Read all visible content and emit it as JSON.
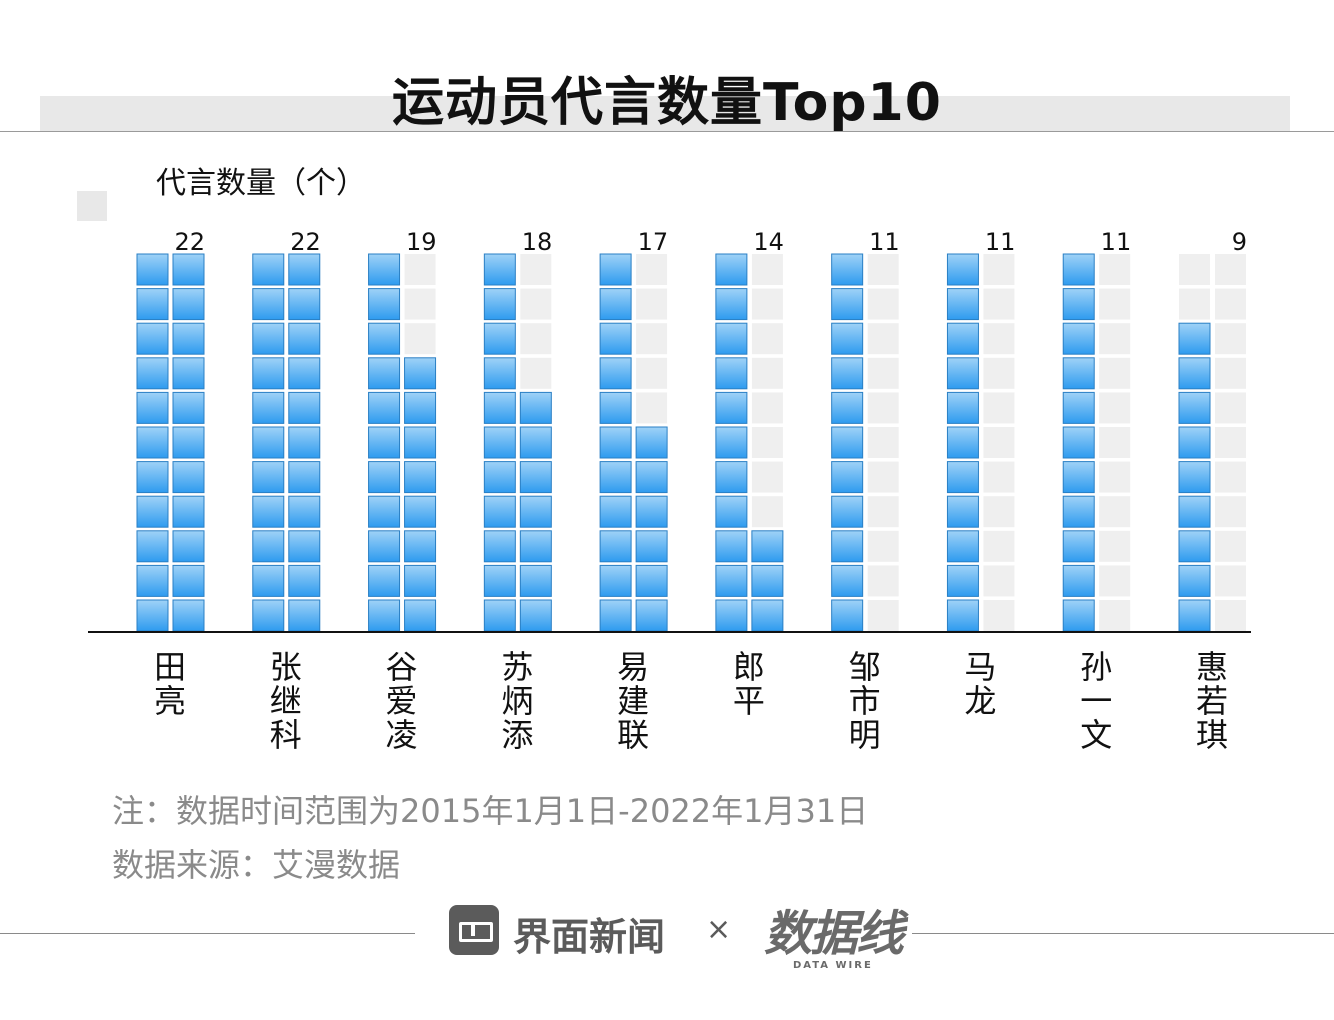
{
  "title": "运动员代言数量Top10",
  "ylabel": "代言数量（个）",
  "notes": {
    "range": "注：数据时间范围为2015年1月1日-2022年1月31日",
    "source": "数据来源：艾漫数据"
  },
  "footer": {
    "brand": "界面新闻",
    "times": "×",
    "logo": "数据线",
    "logo_sub": "DATA WIRE"
  },
  "colors": {
    "block_top": "#9fd2f7",
    "block_bottom": "#2e9bef",
    "block_border": "#2a7fc4",
    "placeholder": "#efefef",
    "axis": "#111111"
  },
  "chart_data": {
    "type": "bar",
    "categories": [
      "田亮",
      "张继科",
      "谷爱凌",
      "苏炳添",
      "易建联",
      "郎平",
      "邹市明",
      "马龙",
      "孙一文",
      "惠若琪"
    ],
    "values": [
      22,
      22,
      19,
      18,
      17,
      14,
      11,
      11,
      11,
      9
    ],
    "ylabel": "代言数量（个）",
    "unit_per_block": 1,
    "blocks_per_column": 11,
    "columns_per_bar": 2,
    "grid": false,
    "legend": "none"
  }
}
